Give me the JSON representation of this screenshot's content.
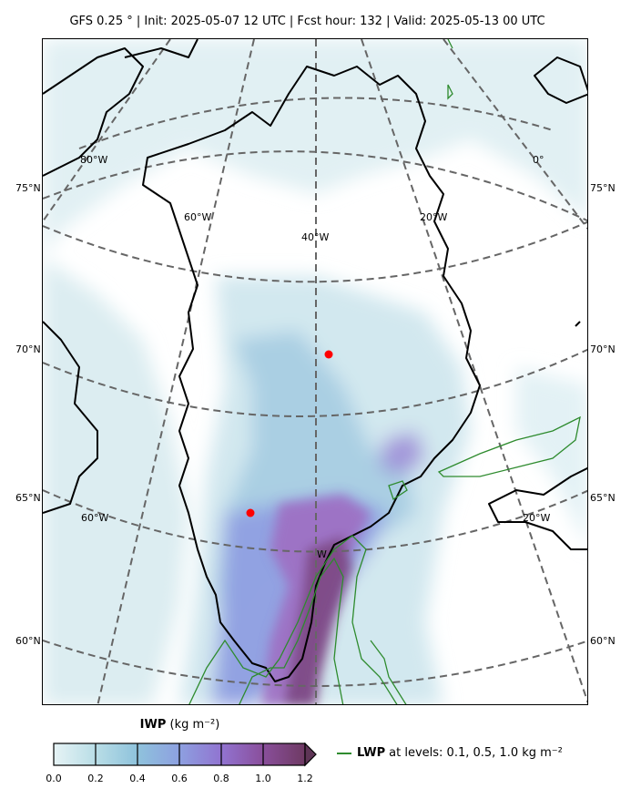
{
  "title": "GFS 0.25$^\\circ$  |  Init: 2025-05-07 12 UTC  |  Fcst hour: 132  |  Valid: 2025-05-13 00 UTC",
  "title_display": "GFS 0.25 °  |  Init: 2025-05-07 12 UTC  |  Fcst hour: 132  |  Valid: 2025-05-13 00 UTC",
  "lat_labels": {
    "left": [
      "75°N",
      "70°N",
      "65°N",
      "60°N"
    ],
    "right": [
      "75°N",
      "70°N",
      "65°N",
      "60°N"
    ]
  },
  "lon_labels": [
    "80°W",
    "60°W",
    "40°W",
    "20°W",
    "0°",
    "60°W",
    "20°W",
    "W"
  ],
  "markers": {
    "count": 2,
    "color": "#ff0000"
  },
  "colors": {
    "coastline": "#000000",
    "graticule": "#666666",
    "lwp_contour": "#2e8b2e",
    "iwp_low": "#e6f2f4",
    "iwp_mid": "#8c8fe0",
    "iwp_high": "#6e3a63"
  },
  "colorbar": {
    "label_bold": "IWP",
    "label_units": " (kg m⁻²)",
    "ticks": [
      "0.0",
      "0.2",
      "0.4",
      "0.6",
      "0.8",
      "1.0",
      "1.2"
    ],
    "range": [
      0.0,
      1.2
    ],
    "extend": "max",
    "colormap_stops": [
      "#e6f3f5",
      "#b8dde6",
      "#8fc3dc",
      "#8da0e0",
      "#9173d0",
      "#8a4f9c",
      "#6e3a63"
    ]
  },
  "legend": {
    "bold": "LWP",
    "text": "at levels: 0.1, 0.5, 1.0  kg m⁻²",
    "levels": [
      0.1,
      0.5,
      1.0
    ]
  }
}
